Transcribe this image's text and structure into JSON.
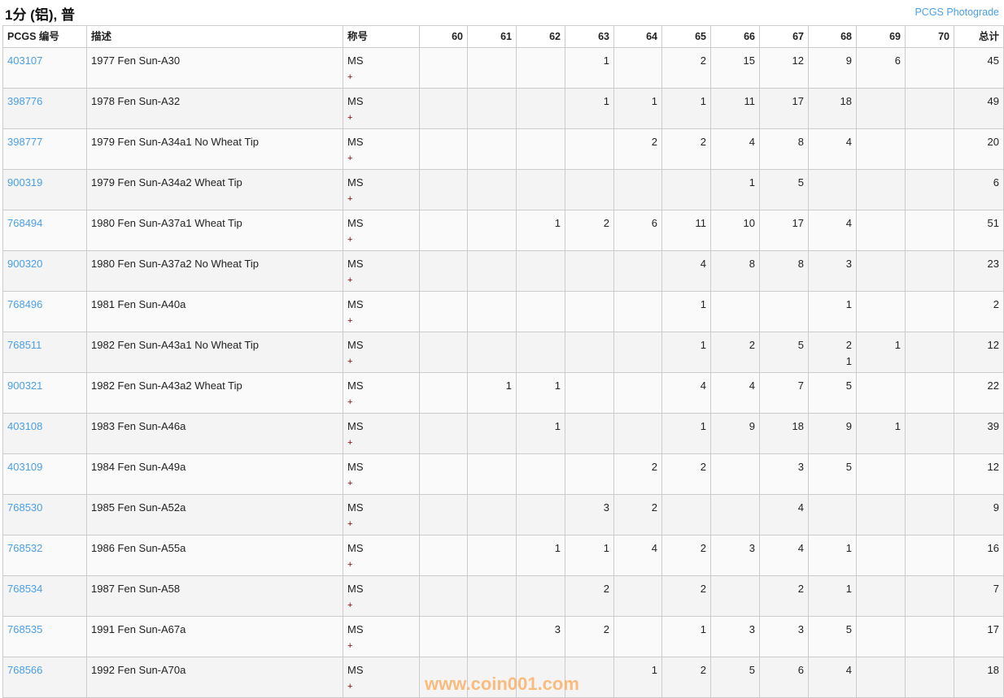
{
  "header": {
    "title": "1分 (铝), 普",
    "photograde_link": "PCGS Photograde"
  },
  "columns": {
    "code": "PCGS 编号",
    "desc": "描述",
    "designation": "称号",
    "grades": [
      "60",
      "61",
      "62",
      "63",
      "64",
      "65",
      "66",
      "67",
      "68",
      "69",
      "70"
    ],
    "total": "总计"
  },
  "rows": [
    {
      "code": "403107",
      "desc": "1977 Fen Sun-A30",
      "des": "MS",
      "plus": "+",
      "grades": [
        "",
        "",
        "",
        "1",
        "",
        "2",
        "15",
        "12",
        "9",
        "6",
        ""
      ],
      "total": "45"
    },
    {
      "code": "398776",
      "desc": "1978 Fen Sun-A32",
      "des": "MS",
      "plus": "+",
      "grades": [
        "",
        "",
        "",
        "1",
        "1",
        "1",
        "11",
        "17",
        "18",
        "",
        ""
      ],
      "total": "49"
    },
    {
      "code": "398777",
      "desc": "1979 Fen Sun-A34a1 No Wheat Tip",
      "des": "MS",
      "plus": "+",
      "grades": [
        "",
        "",
        "",
        "",
        "2",
        "2",
        "4",
        "8",
        "4",
        "",
        ""
      ],
      "total": "20"
    },
    {
      "code": "900319",
      "desc": "1979 Fen Sun-A34a2 Wheat Tip",
      "des": "MS",
      "plus": "+",
      "grades": [
        "",
        "",
        "",
        "",
        "",
        "",
        "1",
        "5",
        "",
        "",
        ""
      ],
      "total": "6"
    },
    {
      "code": "768494",
      "desc": "1980 Fen Sun-A37a1 Wheat Tip",
      "des": "MS",
      "plus": "+",
      "grades": [
        "",
        "",
        "1",
        "2",
        "6",
        "11",
        "10",
        "17",
        "4",
        "",
        ""
      ],
      "total": "51"
    },
    {
      "code": "900320",
      "desc": "1980 Fen Sun-A37a2 No Wheat Tip",
      "des": "MS",
      "plus": "+",
      "grades": [
        "",
        "",
        "",
        "",
        "",
        "4",
        "8",
        "8",
        "3",
        "",
        ""
      ],
      "total": "23"
    },
    {
      "code": "768496",
      "desc": "1981 Fen Sun-A40a",
      "des": "MS",
      "plus": "+",
      "grades": [
        "",
        "",
        "",
        "",
        "",
        "1",
        "",
        "",
        "1",
        "",
        ""
      ],
      "total": "2"
    },
    {
      "code": "768511",
      "desc": "1982 Fen Sun-A43a1 No Wheat Tip",
      "des": "MS",
      "plus": "+",
      "grades": [
        "",
        "",
        "",
        "",
        "",
        "1",
        "2",
        "5",
        "2",
        "1",
        ""
      ],
      "plus_grades": [
        "",
        "",
        "",
        "",
        "",
        "",
        "",
        "",
        "1",
        "",
        ""
      ],
      "total": "12"
    },
    {
      "code": "900321",
      "desc": "1982 Fen Sun-A43a2 Wheat Tip",
      "des": "MS",
      "plus": "+",
      "grades": [
        "",
        "1",
        "1",
        "",
        "",
        "4",
        "4",
        "7",
        "5",
        "",
        ""
      ],
      "total": "22"
    },
    {
      "code": "403108",
      "desc": "1983 Fen Sun-A46a",
      "des": "MS",
      "plus": "+",
      "grades": [
        "",
        "",
        "1",
        "",
        "",
        "1",
        "9",
        "18",
        "9",
        "1",
        ""
      ],
      "total": "39"
    },
    {
      "code": "403109",
      "desc": "1984 Fen Sun-A49a",
      "des": "MS",
      "plus": "+",
      "grades": [
        "",
        "",
        "",
        "",
        "2",
        "2",
        "",
        "3",
        "5",
        "",
        ""
      ],
      "total": "12"
    },
    {
      "code": "768530",
      "desc": "1985 Fen Sun-A52a",
      "des": "MS",
      "plus": "+",
      "grades": [
        "",
        "",
        "",
        "3",
        "2",
        "",
        "",
        "4",
        "",
        "",
        ""
      ],
      "total": "9"
    },
    {
      "code": "768532",
      "desc": "1986 Fen Sun-A55a",
      "des": "MS",
      "plus": "+",
      "grades": [
        "",
        "",
        "1",
        "1",
        "4",
        "2",
        "3",
        "4",
        "1",
        "",
        ""
      ],
      "total": "16"
    },
    {
      "code": "768534",
      "desc": "1987 Fen Sun-A58",
      "des": "MS",
      "plus": "+",
      "grades": [
        "",
        "",
        "",
        "2",
        "",
        "2",
        "",
        "2",
        "1",
        "",
        ""
      ],
      "total": "7"
    },
    {
      "code": "768535",
      "desc": "1991 Fen Sun-A67a",
      "des": "MS",
      "plus": "+",
      "grades": [
        "",
        "",
        "3",
        "2",
        "",
        "1",
        "3",
        "3",
        "5",
        "",
        ""
      ],
      "total": "17"
    },
    {
      "code": "768566",
      "desc": "1992 Fen Sun-A70a",
      "des": "MS",
      "plus": "+",
      "grades": [
        "",
        "",
        "",
        "",
        "1",
        "2",
        "5",
        "6",
        "4",
        "",
        ""
      ],
      "total": "18"
    }
  ],
  "watermark": "www.coin001.com",
  "colors": {
    "link": "#4a9fe8",
    "plus": "#8b0000",
    "watermark": "#fbb26a",
    "border": "#cccccc"
  }
}
